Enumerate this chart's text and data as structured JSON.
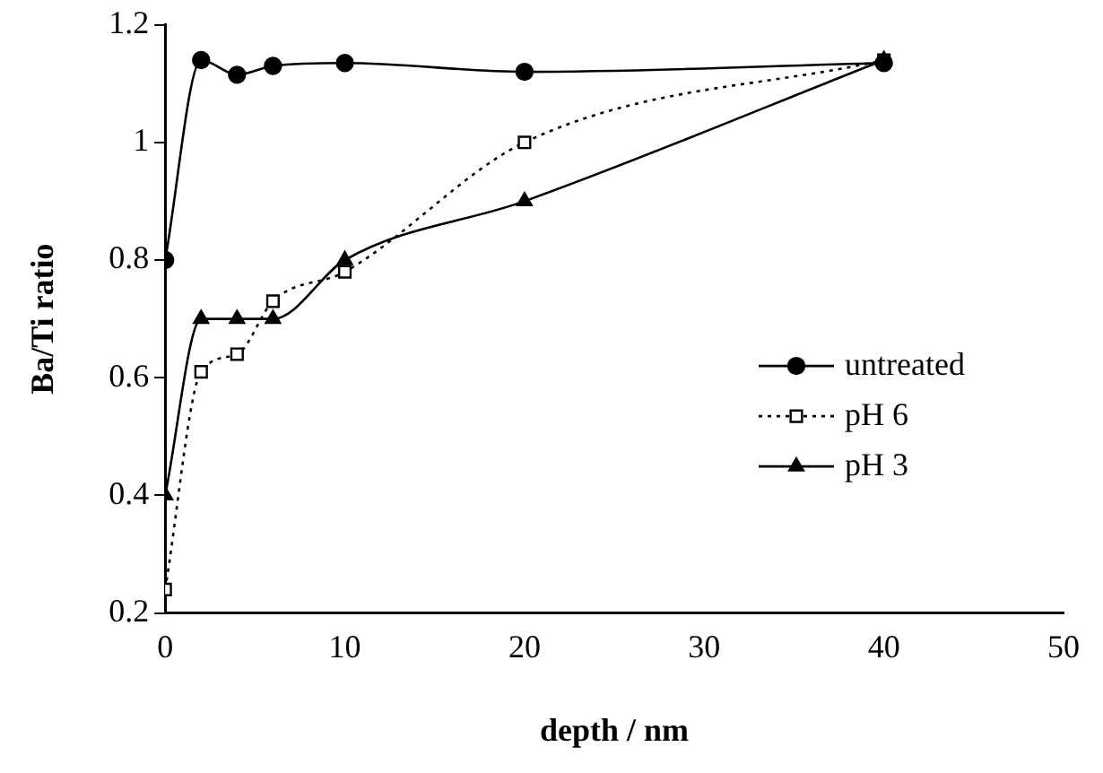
{
  "chart_data": {
    "type": "line",
    "xlabel": "depth / nm",
    "ylabel": "Ba/Ti ratio",
    "xlim": [
      0,
      50
    ],
    "xticks": [
      0,
      10,
      20,
      30,
      40,
      50
    ],
    "ylim": [
      0.2,
      1.2
    ],
    "yticks": [
      0.2,
      0.4,
      0.6,
      0.8,
      1,
      1.2
    ],
    "x": [
      0,
      2,
      4,
      6,
      10,
      20,
      40
    ],
    "grid": false,
    "legend": "right",
    "series": [
      {
        "name": "untreated",
        "color": "#000000",
        "marker": "circle",
        "line_style": "solid",
        "values": [
          0.8,
          1.14,
          1.115,
          1.13,
          1.135,
          1.12,
          1.135
        ]
      },
      {
        "name": "pH 6",
        "color": "#000000",
        "marker": "square",
        "line_style": "dotted",
        "values": [
          0.24,
          0.61,
          0.64,
          0.73,
          0.78,
          1.0,
          1.14
        ]
      },
      {
        "name": "pH 3",
        "color": "#000000",
        "marker": "triangle",
        "line_style": "solid",
        "values": [
          0.4,
          0.7,
          0.7,
          0.7,
          0.8,
          0.9,
          1.14
        ]
      }
    ]
  }
}
